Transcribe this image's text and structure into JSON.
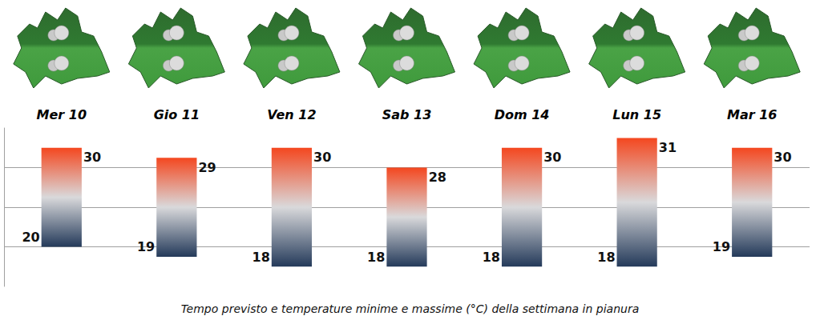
{
  "chart_data": {
    "type": "range_bar",
    "title": "Tempo previsto e temperature minime e massime (°C) della settimana in pianura",
    "categories": [
      "Mer 10",
      "Gio 11",
      "Ven 12",
      "Sab 13",
      "Dom 14",
      "Lun 15",
      "Mar 16"
    ],
    "min": [
      20,
      19,
      18,
      18,
      18,
      18,
      19
    ],
    "max": [
      30,
      29,
      30,
      28,
      30,
      31,
      30
    ],
    "ylim": [
      16,
      32
    ],
    "yticks": [
      20,
      24,
      28
    ],
    "grid": true,
    "tick_labels": false,
    "data_labels": true
  }
}
